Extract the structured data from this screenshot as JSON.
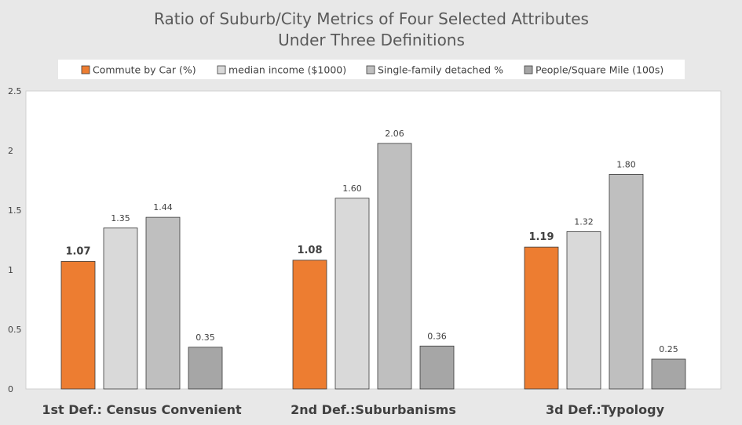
{
  "chart_data": {
    "type": "bar",
    "title": "Ratio of Suburb/City Metrics of Four Selected Attributes",
    "subtitle": "Under Three Definitions",
    "categories": [
      "1st Def.: Census Convenient",
      "2nd Def.:Suburbanisms",
      "3d Def.:Typology"
    ],
    "series": [
      {
        "name": "Commute by Car (%)",
        "color": "#ed7d31",
        "values": [
          1.07,
          1.08,
          1.19
        ],
        "labels": [
          "1.07",
          "1.08",
          "1.19"
        ],
        "label_bold": true
      },
      {
        "name": "median income ($1000)",
        "color": "#d9d9d9",
        "values": [
          1.35,
          1.6,
          1.32
        ],
        "labels": [
          "1.35",
          "1.60",
          "1.32"
        ],
        "label_bold": false
      },
      {
        "name": "Single-family detached %",
        "color": "#bfbfbf",
        "values": [
          1.44,
          2.06,
          1.8
        ],
        "labels": [
          "1.44",
          "2.06",
          "1.80"
        ],
        "label_bold": false
      },
      {
        "name": "People/Square Mile (100s)",
        "color": "#a6a6a6",
        "values": [
          0.35,
          0.36,
          0.25
        ],
        "labels": [
          "0.35",
          "0.36",
          "0.25"
        ],
        "label_bold": false
      }
    ],
    "ylim": [
      0,
      2.5
    ],
    "yticks": [
      "0",
      "0.5",
      "1",
      "1.5",
      "2",
      "2.5"
    ],
    "legend_position": "top",
    "grid": false
  }
}
